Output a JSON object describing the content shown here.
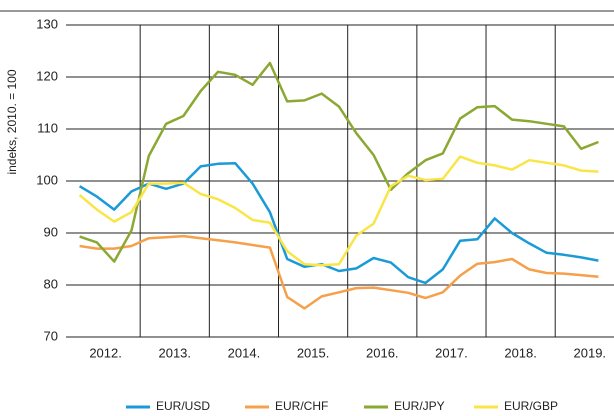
{
  "chart_data": {
    "type": "line",
    "y_label": "indeks, 2010. = 100",
    "x": [
      2012.125,
      2012.375,
      2012.625,
      2012.875,
      2013.125,
      2013.375,
      2013.625,
      2013.875,
      2014.125,
      2014.375,
      2014.625,
      2014.875,
      2015.125,
      2015.375,
      2015.625,
      2015.875,
      2016.125,
      2016.375,
      2016.625,
      2016.875,
      2017.125,
      2017.375,
      2017.625,
      2017.875,
      2018.125,
      2018.375,
      2018.625,
      2018.875,
      2019.125,
      2019.375,
      2019.625
    ],
    "series": [
      {
        "name": "EUR/USD",
        "color": "#1a9bd7",
        "values": [
          99,
          97,
          94.5,
          98,
          99.5,
          98.5,
          99.5,
          102.8,
          103.3,
          103.4,
          99.5,
          94,
          85,
          83.5,
          84,
          82.7,
          83.2,
          85.2,
          84.3,
          81.5,
          80.4,
          83,
          88.5,
          88.8,
          92.8,
          90,
          88,
          86.2,
          85.8,
          85.3,
          84.7
        ]
      },
      {
        "name": "EUR/CHF",
        "color": "#f5a04a",
        "values": [
          87.5,
          87,
          87,
          87.5,
          89,
          89.2,
          89.4,
          89,
          88.6,
          88.2,
          87.7,
          87.2,
          77.7,
          75.5,
          77.8,
          78.6,
          79.4,
          79.5,
          79,
          78.5,
          77.5,
          78.6,
          81.8,
          84.1,
          84.4,
          85,
          83,
          82.3,
          82.2,
          81.9,
          81.6
        ]
      },
      {
        "name": "EUR/JPY",
        "color": "#8aa832",
        "values": [
          89.3,
          88.2,
          84.5,
          90.5,
          104.8,
          111,
          112.5,
          117.3,
          121,
          120.4,
          118.5,
          122.7,
          115.3,
          115.5,
          116.8,
          114.3,
          109.2,
          105,
          98.3,
          101.5,
          104,
          105.3,
          112,
          114.2,
          114.4,
          111.8,
          111.5,
          111,
          110.5,
          106.2,
          107.5
        ]
      },
      {
        "name": "EUR/GBP",
        "color": "#f9e547",
        "values": [
          97.3,
          94.5,
          92.2,
          94,
          99.5,
          99.5,
          99.7,
          97.5,
          96.5,
          94.8,
          92.5,
          92,
          86.5,
          84,
          83.8,
          84,
          89.5,
          91.8,
          99,
          101,
          100.2,
          100.4,
          104.7,
          103.5,
          103,
          102.2,
          104,
          103.5,
          103,
          102,
          101.8
        ]
      }
    ],
    "xlim": [
      2012,
      2019.85
    ],
    "xticks": [
      {
        "value": 2012.5,
        "label": "2012."
      },
      {
        "value": 2013.5,
        "label": "2013."
      },
      {
        "value": 2014.5,
        "label": "2014."
      },
      {
        "value": 2015.5,
        "label": "2015."
      },
      {
        "value": 2016.5,
        "label": "2016."
      },
      {
        "value": 2017.5,
        "label": "2017."
      },
      {
        "value": 2018.5,
        "label": "2018."
      },
      {
        "value": 2019.5,
        "label": "2019."
      }
    ],
    "ylim": [
      70,
      130
    ],
    "yticks": [
      70,
      80,
      90,
      100,
      110,
      120,
      130
    ],
    "grid": true
  }
}
